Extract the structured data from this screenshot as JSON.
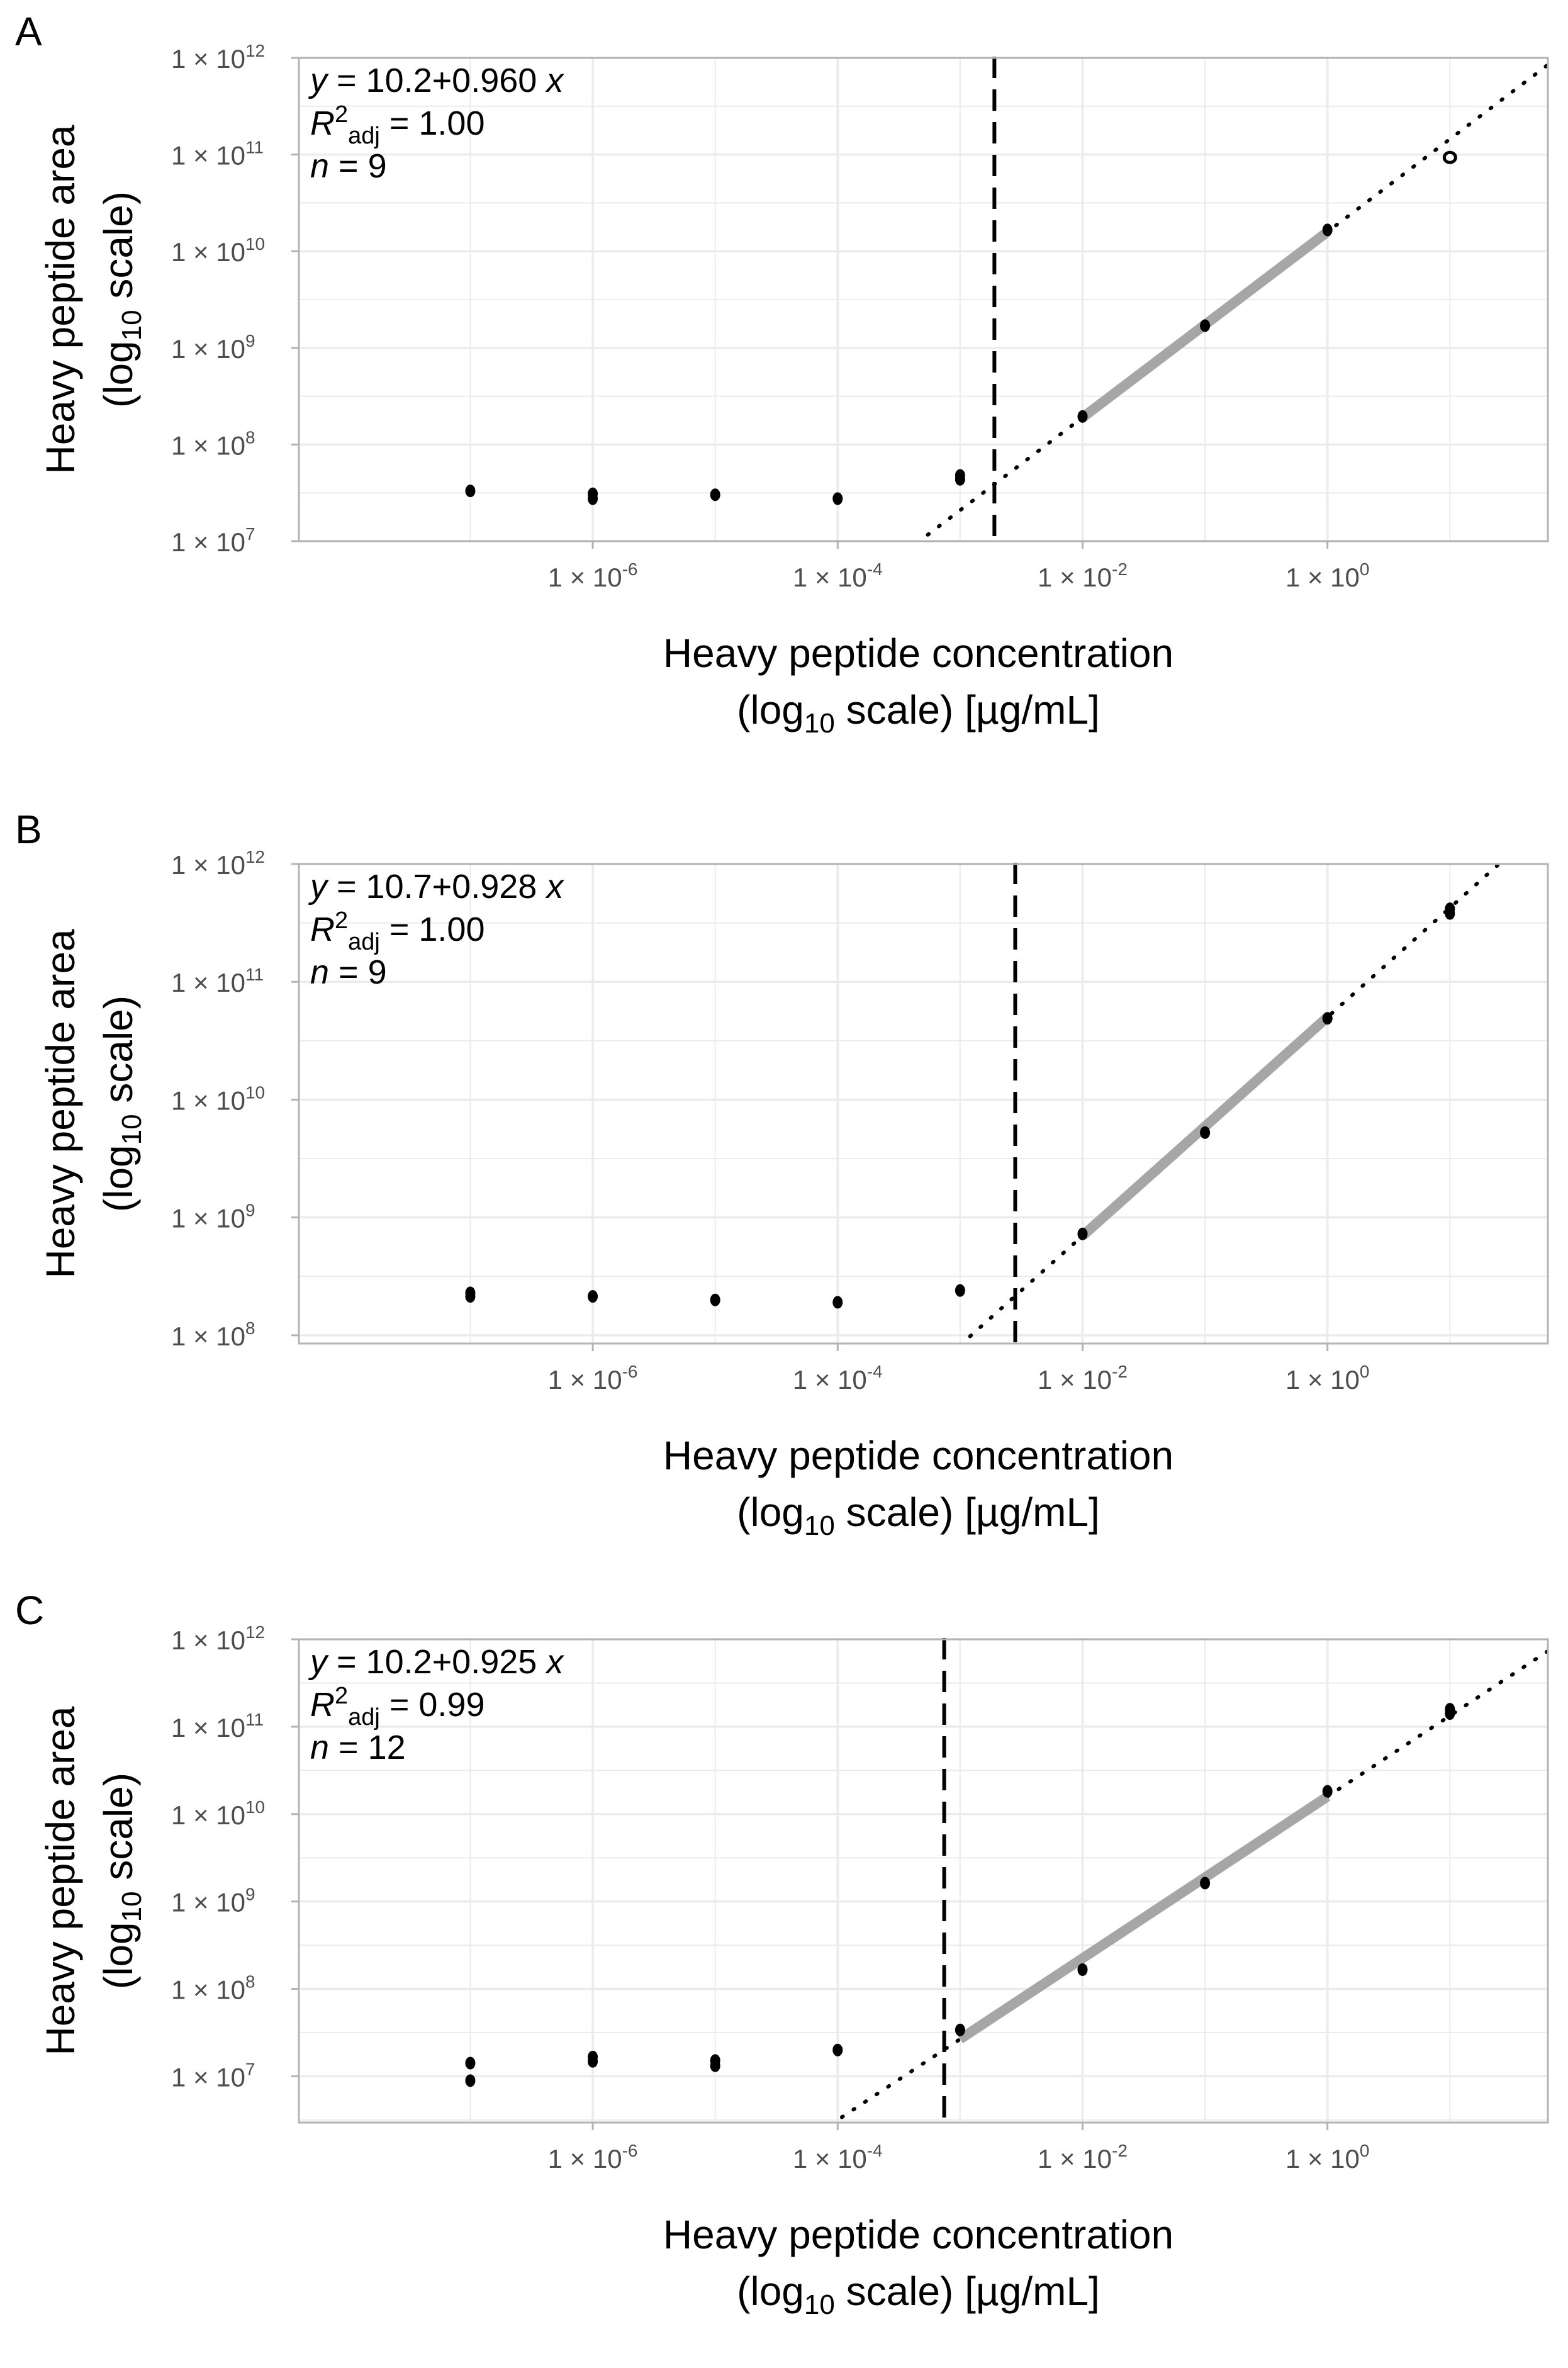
{
  "theme": {
    "grid_color": "#ebebeb",
    "frame_color": "#b3b3b3",
    "fit_color": "#a6a6a6",
    "point_color": "#000000"
  },
  "chart_data": [
    {
      "type": "scatter",
      "panel": "A",
      "xlabel": [
        "Heavy peptide concentration",
        "(log10 scale) [µg/mL]"
      ],
      "ylabel": [
        "Heavy peptide area",
        "(log10 scale)"
      ],
      "x_scale": "log10",
      "y_scale": "log10",
      "xlim_log10": [
        -8.4,
        1.8
      ],
      "ylim_log10": [
        7.0,
        12.0
      ],
      "x_ticks": [
        {
          "label": "1 × 10",
          "exp": "-6",
          "log10": -6
        },
        {
          "label": "1 × 10",
          "exp": "-4",
          "log10": -4
        },
        {
          "label": "1 × 10",
          "exp": "-2",
          "log10": -2
        },
        {
          "label": "1 × 10",
          "exp": "0",
          "log10": 0
        }
      ],
      "y_ticks": [
        {
          "label": "1 × 10",
          "exp": "12",
          "log10": 12
        },
        {
          "label": "1 × 10",
          "exp": "11",
          "log10": 11
        },
        {
          "label": "1 × 10",
          "exp": "10",
          "log10": 10
        },
        {
          "label": "1 × 10",
          "exp": "9",
          "log10": 9
        },
        {
          "label": "1 × 10",
          "exp": "8",
          "log10": 8
        },
        {
          "label": "1 × 10",
          "exp": "7",
          "log10": 7
        }
      ],
      "annotation": {
        "equation": "y = 10.2+0.960 x",
        "r2": "R2adj = 1.00",
        "r2_value": "= 1.00",
        "n": "n = 9",
        "n_value": "= 9"
      },
      "intercept": 10.2,
      "slope": 0.96,
      "fit_range_log10": [
        -2,
        0
      ],
      "lod_log10": -2.72,
      "points": [
        {
          "x": -7,
          "y": 7.52
        },
        {
          "x": -6,
          "y": 7.49
        },
        {
          "x": -6,
          "y": 7.44
        },
        {
          "x": -5,
          "y": 7.48
        },
        {
          "x": -4,
          "y": 7.44
        },
        {
          "x": -3,
          "y": 7.68
        },
        {
          "x": -3,
          "y": 7.64
        },
        {
          "x": -2,
          "y": 8.29
        },
        {
          "x": -1,
          "y": 9.23
        },
        {
          "x": 0,
          "y": 10.22
        },
        {
          "x": 1,
          "y": 10.97,
          "open": true
        }
      ]
    },
    {
      "type": "scatter",
      "panel": "B",
      "xlabel": [
        "Heavy peptide concentration",
        "(log10 scale) [µg/mL]"
      ],
      "ylabel": [
        "Heavy peptide area",
        "(log10 scale)"
      ],
      "x_scale": "log10",
      "y_scale": "log10",
      "xlim_log10": [
        -8.4,
        1.8
      ],
      "ylim_log10": [
        7.93,
        12.0
      ],
      "x_ticks": [
        {
          "label": "1 × 10",
          "exp": "-6",
          "log10": -6
        },
        {
          "label": "1 × 10",
          "exp": "-4",
          "log10": -4
        },
        {
          "label": "1 × 10",
          "exp": "-2",
          "log10": -2
        },
        {
          "label": "1 × 10",
          "exp": "0",
          "log10": 0
        }
      ],
      "y_ticks": [
        {
          "label": "1 × 10",
          "exp": "12",
          "log10": 12
        },
        {
          "label": "1 × 10",
          "exp": "11",
          "log10": 11
        },
        {
          "label": "1 × 10",
          "exp": "10",
          "log10": 10
        },
        {
          "label": "1 × 10",
          "exp": "9",
          "log10": 9
        },
        {
          "label": "1 × 10",
          "exp": "8",
          "log10": 8
        }
      ],
      "annotation": {
        "equation": "y = 10.7+0.928 x",
        "r2": "R2adj = 1.00",
        "r2_value": "= 1.00",
        "n": "n = 9",
        "n_value": "= 9"
      },
      "intercept": 10.7,
      "slope": 0.928,
      "fit_range_log10": [
        -2,
        0
      ],
      "lod_log10": -2.55,
      "points": [
        {
          "x": -7,
          "y": 8.36
        },
        {
          "x": -7,
          "y": 8.33
        },
        {
          "x": -6,
          "y": 8.33
        },
        {
          "x": -5,
          "y": 8.3
        },
        {
          "x": -4,
          "y": 8.28
        },
        {
          "x": -3,
          "y": 8.38
        },
        {
          "x": -2,
          "y": 8.86
        },
        {
          "x": -1,
          "y": 9.72
        },
        {
          "x": 0,
          "y": 10.69
        },
        {
          "x": 1,
          "y": 11.62
        },
        {
          "x": 1,
          "y": 11.58
        }
      ]
    },
    {
      "type": "scatter",
      "panel": "C",
      "xlabel": [
        "Heavy peptide concentration",
        "(log10 scale) [µg/mL]"
      ],
      "ylabel": [
        "Heavy peptide area",
        "(log10 scale)"
      ],
      "x_scale": "log10",
      "y_scale": "log10",
      "xlim_log10": [
        -8.4,
        1.8
      ],
      "ylim_log10": [
        6.47,
        12.0
      ],
      "x_ticks": [
        {
          "label": "1 × 10",
          "exp": "-6",
          "log10": -6
        },
        {
          "label": "1 × 10",
          "exp": "-4",
          "log10": -4
        },
        {
          "label": "1 × 10",
          "exp": "-2",
          "log10": -2
        },
        {
          "label": "1 × 10",
          "exp": "0",
          "log10": 0
        }
      ],
      "y_ticks": [
        {
          "label": "1 × 10",
          "exp": "12",
          "log10": 12
        },
        {
          "label": "1 × 10",
          "exp": "11",
          "log10": 11
        },
        {
          "label": "1 × 10",
          "exp": "10",
          "log10": 10
        },
        {
          "label": "1 × 10",
          "exp": "9",
          "log10": 9
        },
        {
          "label": "1 × 10",
          "exp": "8",
          "log10": 8
        },
        {
          "label": "1 × 10",
          "exp": "7",
          "log10": 7
        }
      ],
      "annotation": {
        "equation": "y = 10.2+0.925 x",
        "r2": "R2adj = 0.99",
        "r2_value": "= 0.99",
        "n": "n = 12",
        "n_value": "= 12"
      },
      "intercept": 10.2,
      "slope": 0.925,
      "fit_range_log10": [
        -3,
        0
      ],
      "lod_log10": -3.13,
      "points": [
        {
          "x": -7,
          "y": 7.15
        },
        {
          "x": -7,
          "y": 6.95
        },
        {
          "x": -6,
          "y": 7.22
        },
        {
          "x": -6,
          "y": 7.17
        },
        {
          "x": -5,
          "y": 7.18
        },
        {
          "x": -5,
          "y": 7.12
        },
        {
          "x": -4,
          "y": 7.3
        },
        {
          "x": -3,
          "y": 7.53
        },
        {
          "x": -2,
          "y": 8.22
        },
        {
          "x": -1,
          "y": 9.21
        },
        {
          "x": 0,
          "y": 10.26
        },
        {
          "x": 1,
          "y": 11.2
        },
        {
          "x": 1,
          "y": 11.15
        }
      ]
    }
  ]
}
